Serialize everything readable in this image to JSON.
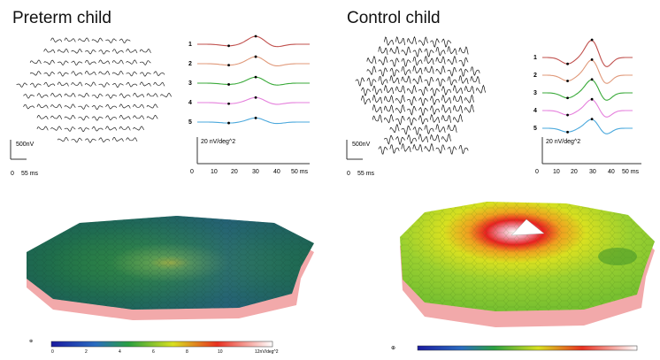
{
  "left_panel": {
    "title": "Preterm child",
    "array_scale": "500nV",
    "array_time": [
      "0",
      "55 ms"
    ],
    "traces_unit": "20 nV/deg^2",
    "trace_labels": [
      "1",
      "2",
      "3",
      "4",
      "5"
    ],
    "trace_colors": [
      "#c0504d",
      "#e0997a",
      "#3aaa3a",
      "#e57fdc",
      "#4aa8dc"
    ],
    "x_ticks": [
      "0",
      "10",
      "20",
      "30",
      "40",
      "50 ms"
    ],
    "colorbar_ticks": [
      "0",
      "2",
      "4",
      "6",
      "8",
      "10",
      "12nV/deg^2"
    ]
  },
  "right_panel": {
    "title": "Control child",
    "array_scale": "500nV",
    "array_time": [
      "0",
      "55 ms"
    ],
    "traces_unit": "20 nV/deg^2",
    "trace_labels": [
      "1",
      "2",
      "3",
      "4",
      "5"
    ],
    "trace_colors": [
      "#c0504d",
      "#e0997a",
      "#3aaa3a",
      "#e57fdc",
      "#4aa8dc"
    ],
    "x_ticks": [
      "0",
      "10",
      "20",
      "30",
      "40",
      "50 ms"
    ]
  }
}
